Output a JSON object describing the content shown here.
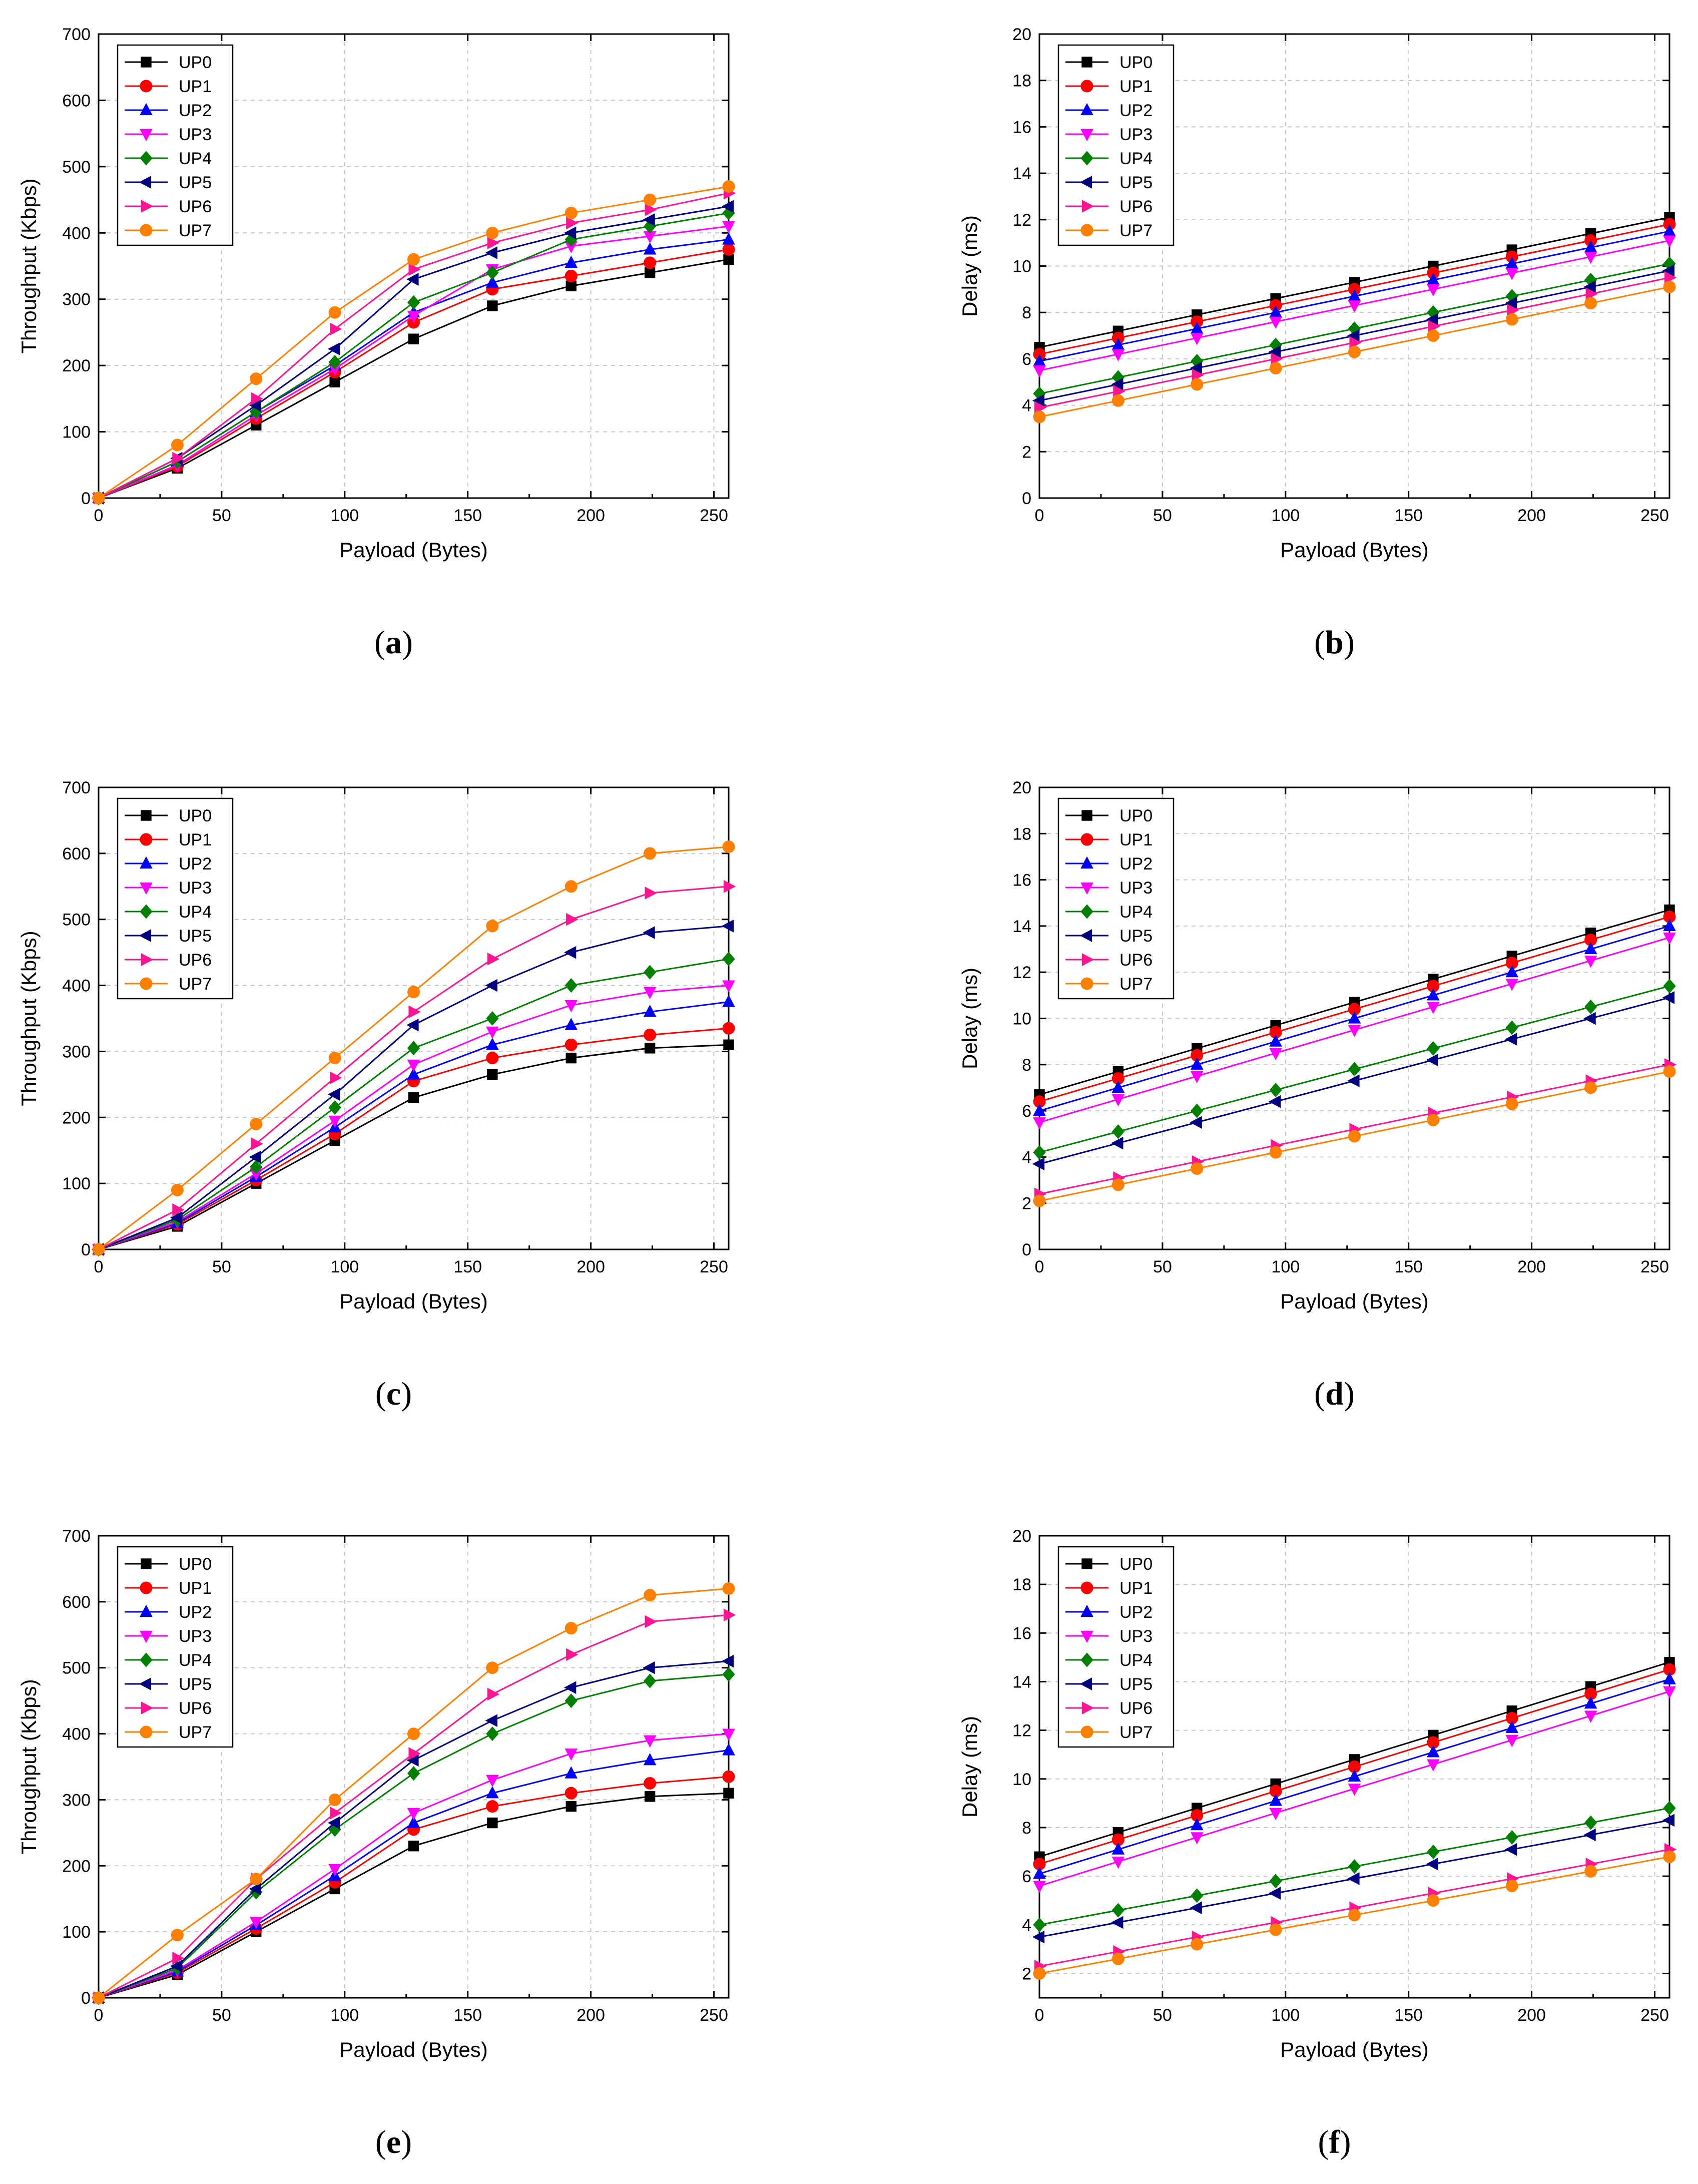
{
  "series_styles": [
    {
      "name": "UP0",
      "color": "#000000",
      "marker": "square"
    },
    {
      "name": "UP1",
      "color": "#ff0000",
      "marker": "circle"
    },
    {
      "name": "UP2",
      "color": "#0000ff",
      "marker": "triangle-up"
    },
    {
      "name": "UP3",
      "color": "#ff00ff",
      "marker": "triangle-down"
    },
    {
      "name": "UP4",
      "color": "#008000",
      "marker": "diamond"
    },
    {
      "name": "UP5",
      "color": "#000080",
      "marker": "triangle-left"
    },
    {
      "name": "UP6",
      "color": "#ff1493",
      "marker": "triangle-right"
    },
    {
      "name": "UP7",
      "color": "#ff8000",
      "marker": "circle"
    }
  ],
  "chart_data": [
    {
      "panel": "(a)",
      "type": "line",
      "xlabel": "Payload (Bytes)",
      "ylabel": "Throughput (Kbps)",
      "xlim": [
        0,
        256
      ],
      "ylim": [
        0,
        700
      ],
      "xticks": [
        0,
        50,
        100,
        150,
        200,
        250
      ],
      "yticks": [
        0,
        100,
        200,
        300,
        400,
        500,
        600,
        700
      ],
      "grid": true,
      "legend": "top-left",
      "x": [
        0,
        32,
        64,
        96,
        128,
        160,
        192,
        224,
        256
      ],
      "series": [
        {
          "name": "UP0",
          "values": [
            0,
            45,
            110,
            175,
            240,
            290,
            320,
            340,
            360
          ]
        },
        {
          "name": "UP1",
          "values": [
            0,
            48,
            120,
            190,
            265,
            315,
            335,
            355,
            375
          ]
        },
        {
          "name": "UP2",
          "values": [
            0,
            55,
            130,
            200,
            280,
            325,
            355,
            375,
            390
          ]
        },
        {
          "name": "UP3",
          "values": [
            0,
            50,
            125,
            195,
            275,
            345,
            380,
            395,
            410
          ]
        },
        {
          "name": "UP4",
          "values": [
            0,
            55,
            130,
            205,
            295,
            340,
            390,
            410,
            430
          ]
        },
        {
          "name": "UP5",
          "values": [
            0,
            60,
            140,
            225,
            330,
            370,
            400,
            420,
            440
          ]
        },
        {
          "name": "UP6",
          "values": [
            0,
            60,
            150,
            255,
            345,
            385,
            415,
            435,
            460
          ]
        },
        {
          "name": "UP7",
          "values": [
            0,
            80,
            180,
            280,
            360,
            400,
            430,
            450,
            470
          ]
        }
      ]
    },
    {
      "panel": "(b)",
      "type": "line",
      "xlabel": "Payload (Bytes)",
      "ylabel": "Delay (ms)",
      "xlim": [
        0,
        256
      ],
      "ylim": [
        0,
        20
      ],
      "xticks": [
        0,
        50,
        100,
        150,
        200,
        250
      ],
      "yticks": [
        0,
        2,
        4,
        6,
        8,
        10,
        12,
        14,
        16,
        18,
        20
      ],
      "grid": true,
      "legend": "top-left",
      "x": [
        0,
        32,
        64,
        96,
        128,
        160,
        192,
        224,
        256
      ],
      "series": [
        {
          "name": "UP0",
          "values": [
            6.5,
            7.2,
            7.9,
            8.6,
            9.3,
            10.0,
            10.7,
            11.4,
            12.1
          ]
        },
        {
          "name": "UP1",
          "values": [
            6.2,
            6.9,
            7.6,
            8.3,
            9.0,
            9.7,
            10.4,
            11.1,
            11.8
          ]
        },
        {
          "name": "UP2",
          "values": [
            5.9,
            6.6,
            7.3,
            8.0,
            8.7,
            9.4,
            10.1,
            10.8,
            11.5
          ]
        },
        {
          "name": "UP3",
          "values": [
            5.5,
            6.2,
            6.9,
            7.6,
            8.3,
            9.0,
            9.7,
            10.4,
            11.1
          ]
        },
        {
          "name": "UP4",
          "values": [
            4.5,
            5.2,
            5.9,
            6.6,
            7.3,
            8.0,
            8.7,
            9.4,
            10.1
          ]
        },
        {
          "name": "UP5",
          "values": [
            4.2,
            4.9,
            5.6,
            6.3,
            7.0,
            7.7,
            8.4,
            9.1,
            9.8
          ]
        },
        {
          "name": "UP6",
          "values": [
            3.9,
            4.6,
            5.3,
            6.0,
            6.7,
            7.4,
            8.1,
            8.8,
            9.5
          ]
        },
        {
          "name": "UP7",
          "values": [
            3.5,
            4.2,
            4.9,
            5.6,
            6.3,
            7.0,
            7.7,
            8.4,
            9.1
          ]
        }
      ]
    },
    {
      "panel": "(c)",
      "type": "line",
      "xlabel": "Payload (Bytes)",
      "ylabel": "Throughput (Kbps)",
      "xlim": [
        0,
        256
      ],
      "ylim": [
        0,
        700
      ],
      "xticks": [
        0,
        50,
        100,
        150,
        200,
        250
      ],
      "yticks": [
        0,
        100,
        200,
        300,
        400,
        500,
        600,
        700
      ],
      "grid": true,
      "legend": "top-left",
      "x": [
        0,
        32,
        64,
        96,
        128,
        160,
        192,
        224,
        256
      ],
      "series": [
        {
          "name": "UP0",
          "values": [
            0,
            35,
            100,
            165,
            230,
            265,
            290,
            305,
            310
          ]
        },
        {
          "name": "UP1",
          "values": [
            0,
            38,
            105,
            175,
            255,
            290,
            310,
            325,
            335
          ]
        },
        {
          "name": "UP2",
          "values": [
            0,
            40,
            110,
            185,
            265,
            310,
            340,
            360,
            375
          ]
        },
        {
          "name": "UP3",
          "values": [
            0,
            42,
            115,
            195,
            280,
            330,
            370,
            390,
            400
          ]
        },
        {
          "name": "UP4",
          "values": [
            0,
            45,
            125,
            215,
            305,
            350,
            400,
            420,
            440
          ]
        },
        {
          "name": "UP5",
          "values": [
            0,
            48,
            140,
            235,
            340,
            400,
            450,
            480,
            490
          ]
        },
        {
          "name": "UP6",
          "values": [
            0,
            60,
            160,
            260,
            360,
            440,
            500,
            540,
            550
          ]
        },
        {
          "name": "UP7",
          "values": [
            0,
            90,
            190,
            290,
            390,
            490,
            550,
            600,
            610
          ]
        }
      ]
    },
    {
      "panel": "(d)",
      "type": "line",
      "xlabel": "Payload (Bytes)",
      "ylabel": "Delay (ms)",
      "xlim": [
        0,
        256
      ],
      "ylim": [
        0,
        20
      ],
      "xticks": [
        0,
        50,
        100,
        150,
        200,
        250
      ],
      "yticks": [
        0,
        2,
        4,
        6,
        8,
        10,
        12,
        14,
        16,
        18,
        20
      ],
      "grid": true,
      "legend": "top-left",
      "x": [
        0,
        32,
        64,
        96,
        128,
        160,
        192,
        224,
        256
      ],
      "series": [
        {
          "name": "UP0",
          "values": [
            6.7,
            7.7,
            8.7,
            9.7,
            10.7,
            11.7,
            12.7,
            13.7,
            14.7
          ]
        },
        {
          "name": "UP1",
          "values": [
            6.4,
            7.4,
            8.4,
            9.4,
            10.4,
            11.4,
            12.4,
            13.4,
            14.4
          ]
        },
        {
          "name": "UP2",
          "values": [
            6.0,
            7.0,
            8.0,
            9.0,
            10.0,
            11.0,
            12.0,
            13.0,
            14.0
          ]
        },
        {
          "name": "UP3",
          "values": [
            5.5,
            6.5,
            7.5,
            8.5,
            9.5,
            10.5,
            11.5,
            12.5,
            13.5
          ]
        },
        {
          "name": "UP4",
          "values": [
            4.2,
            5.1,
            6.0,
            6.9,
            7.8,
            8.7,
            9.6,
            10.5,
            11.4
          ]
        },
        {
          "name": "UP5",
          "values": [
            3.7,
            4.6,
            5.5,
            6.4,
            7.3,
            8.2,
            9.1,
            10.0,
            10.9
          ]
        },
        {
          "name": "UP6",
          "values": [
            2.4,
            3.1,
            3.8,
            4.5,
            5.2,
            5.9,
            6.6,
            7.3,
            8.0
          ]
        },
        {
          "name": "UP7",
          "values": [
            2.1,
            2.8,
            3.5,
            4.2,
            4.9,
            5.6,
            6.3,
            7.0,
            7.7
          ]
        }
      ]
    },
    {
      "panel": "(e)",
      "type": "line",
      "xlabel": "Payload (Bytes)",
      "ylabel": "Throughput (Kbps)",
      "xlim": [
        0,
        256
      ],
      "ylim": [
        0,
        700
      ],
      "xticks": [
        0,
        50,
        100,
        150,
        200,
        250
      ],
      "yticks": [
        0,
        100,
        200,
        300,
        400,
        500,
        600,
        700
      ],
      "grid": true,
      "legend": "top-left",
      "x": [
        0,
        32,
        64,
        96,
        128,
        160,
        192,
        224,
        256
      ],
      "series": [
        {
          "name": "UP0",
          "values": [
            0,
            35,
            100,
            165,
            230,
            265,
            290,
            305,
            310
          ]
        },
        {
          "name": "UP1",
          "values": [
            0,
            38,
            105,
            175,
            255,
            290,
            310,
            325,
            335
          ]
        },
        {
          "name": "UP2",
          "values": [
            0,
            40,
            110,
            185,
            265,
            310,
            340,
            360,
            375
          ]
        },
        {
          "name": "UP3",
          "values": [
            0,
            42,
            115,
            195,
            280,
            330,
            370,
            390,
            400
          ]
        },
        {
          "name": "UP4",
          "values": [
            0,
            45,
            160,
            255,
            340,
            400,
            450,
            480,
            490
          ]
        },
        {
          "name": "UP5",
          "values": [
            0,
            48,
            165,
            265,
            360,
            420,
            470,
            500,
            510
          ]
        },
        {
          "name": "UP6",
          "values": [
            0,
            60,
            180,
            280,
            370,
            460,
            520,
            570,
            580
          ]
        },
        {
          "name": "UP7",
          "values": [
            0,
            95,
            180,
            300,
            400,
            500,
            560,
            610,
            620
          ]
        }
      ]
    },
    {
      "panel": "(f)",
      "type": "line",
      "xlabel": "Payload (Bytes)",
      "ylabel": "Delay (ms)",
      "xlim": [
        0,
        256
      ],
      "ylim": [
        1,
        20
      ],
      "xticks": [
        0,
        50,
        100,
        150,
        200,
        250
      ],
      "yticks": [
        2,
        4,
        6,
        8,
        10,
        12,
        14,
        16,
        18,
        20
      ],
      "grid": true,
      "legend": "top-left",
      "x": [
        0,
        32,
        64,
        96,
        128,
        160,
        192,
        224,
        256
      ],
      "series": [
        {
          "name": "UP0",
          "values": [
            6.8,
            7.8,
            8.8,
            9.8,
            10.8,
            11.8,
            12.8,
            13.8,
            14.8
          ]
        },
        {
          "name": "UP1",
          "values": [
            6.5,
            7.5,
            8.5,
            9.5,
            10.5,
            11.5,
            12.5,
            13.5,
            14.5
          ]
        },
        {
          "name": "UP2",
          "values": [
            6.1,
            7.1,
            8.1,
            9.1,
            10.1,
            11.1,
            12.1,
            13.1,
            14.1
          ]
        },
        {
          "name": "UP3",
          "values": [
            5.6,
            6.6,
            7.6,
            8.6,
            9.6,
            10.6,
            11.6,
            12.6,
            13.6
          ]
        },
        {
          "name": "UP4",
          "values": [
            4.0,
            4.6,
            5.2,
            5.8,
            6.4,
            7.0,
            7.6,
            8.2,
            8.8
          ]
        },
        {
          "name": "UP5",
          "values": [
            3.5,
            4.1,
            4.7,
            5.3,
            5.9,
            6.5,
            7.1,
            7.7,
            8.3
          ]
        },
        {
          "name": "UP6",
          "values": [
            2.3,
            2.9,
            3.5,
            4.1,
            4.7,
            5.3,
            5.9,
            6.5,
            7.1
          ]
        },
        {
          "name": "UP7",
          "values": [
            2.0,
            2.6,
            3.2,
            3.8,
            4.4,
            5.0,
            5.6,
            6.2,
            6.8
          ]
        }
      ]
    }
  ]
}
